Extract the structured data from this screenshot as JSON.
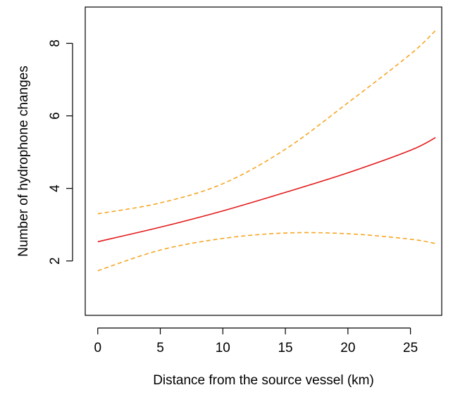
{
  "chart_data": {
    "type": "line",
    "title": "",
    "xlabel": "Distance from the source vessel (km)",
    "ylabel": "Number of hydrophone changes",
    "xlim": [
      -1,
      27.5
    ],
    "ylim": [
      0.5,
      9
    ],
    "x_ticks": [
      0,
      5,
      10,
      15,
      20,
      25
    ],
    "y_ticks": [
      2,
      4,
      6,
      8
    ],
    "x_tick_labels": [
      "0",
      "5",
      "10",
      "15",
      "20",
      "25"
    ],
    "y_tick_labels": [
      "2",
      "4",
      "6",
      "8"
    ],
    "grid": false,
    "legend": "none",
    "series": [
      {
        "role": "estimate",
        "style": "solid",
        "color": "#e31a1c",
        "x": [
          0,
          5,
          10,
          15,
          20,
          25,
          27
        ],
        "y": [
          2.53,
          2.93,
          3.38,
          3.89,
          4.43,
          5.05,
          5.4
        ]
      },
      {
        "role": "upper-bound",
        "style": "dashed",
        "color": "#f5a623",
        "x": [
          0,
          5,
          10,
          15,
          20,
          25,
          27
        ],
        "y": [
          3.3,
          3.6,
          4.13,
          5.08,
          6.36,
          7.7,
          8.35
        ]
      },
      {
        "role": "lower-bound",
        "style": "dashed",
        "color": "#f5a623",
        "x": [
          0,
          5,
          10,
          15,
          20,
          25,
          27
        ],
        "y": [
          1.73,
          2.3,
          2.62,
          2.77,
          2.75,
          2.6,
          2.48
        ]
      }
    ]
  }
}
